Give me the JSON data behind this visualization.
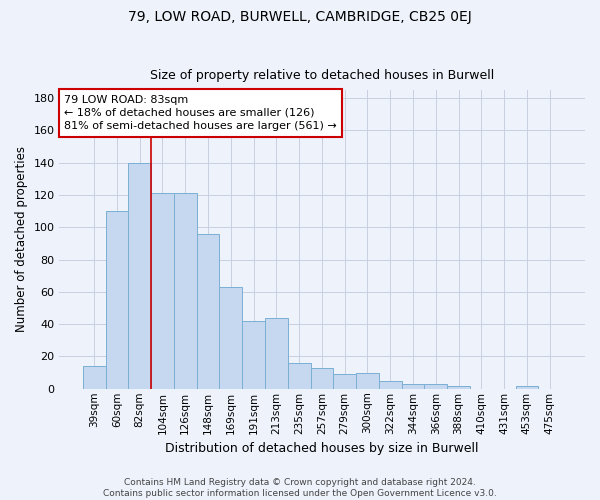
{
  "title1": "79, LOW ROAD, BURWELL, CAMBRIDGE, CB25 0EJ",
  "title2": "Size of property relative to detached houses in Burwell",
  "xlabel": "Distribution of detached houses by size in Burwell",
  "ylabel": "Number of detached properties",
  "footnote": "Contains HM Land Registry data © Crown copyright and database right 2024.\nContains public sector information licensed under the Open Government Licence v3.0.",
  "categories": [
    "39sqm",
    "60sqm",
    "82sqm",
    "104sqm",
    "126sqm",
    "148sqm",
    "169sqm",
    "191sqm",
    "213sqm",
    "235sqm",
    "257sqm",
    "279sqm",
    "300sqm",
    "322sqm",
    "344sqm",
    "366sqm",
    "388sqm",
    "410sqm",
    "431sqm",
    "453sqm",
    "475sqm"
  ],
  "values": [
    14,
    110,
    140,
    121,
    121,
    96,
    63,
    42,
    44,
    16,
    13,
    9,
    10,
    5,
    3,
    3,
    2,
    0,
    0,
    2,
    0
  ],
  "bar_color": "#c5d8f0",
  "bar_edge_color": "#7bafd4",
  "bg_color": "#eef2fb",
  "grid_color": "#c8cfe0",
  "vline_index": 2,
  "vline_color": "#cc0000",
  "annotation_line1": "79 LOW ROAD: 83sqm",
  "annotation_line2": "← 18% of detached houses are smaller (126)",
  "annotation_line3": "81% of semi-detached houses are larger (561) →",
  "annotation_box_color": "#ffffff",
  "annotation_box_edge": "#cc0000",
  "ylim": [
    0,
    185
  ],
  "yticks": [
    0,
    20,
    40,
    60,
    80,
    100,
    120,
    140,
    160,
    180
  ]
}
